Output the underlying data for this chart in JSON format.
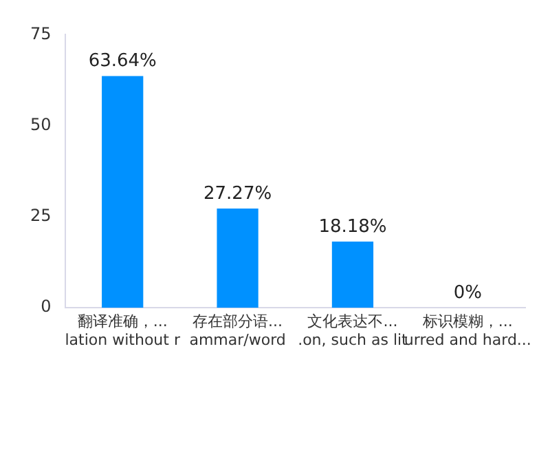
{
  "chart_data": {
    "type": "bar",
    "categories": [
      "翻译准确，...\nlation without r",
      "存在部分语...\nammar/word",
      "文化表达不...\n.on, such as lit",
      "标识模糊，...\nurred and hard..."
    ],
    "values": [
      63.64,
      27.27,
      18.18,
      0
    ],
    "color": "#0091ff",
    "value_labels": [
      "63.64%",
      "27.27%",
      "18.18%",
      "0%"
    ],
    "ylim": [
      0,
      75
    ],
    "yticks": [
      0,
      25,
      50,
      75
    ],
    "grid": false,
    "legend": false
  }
}
